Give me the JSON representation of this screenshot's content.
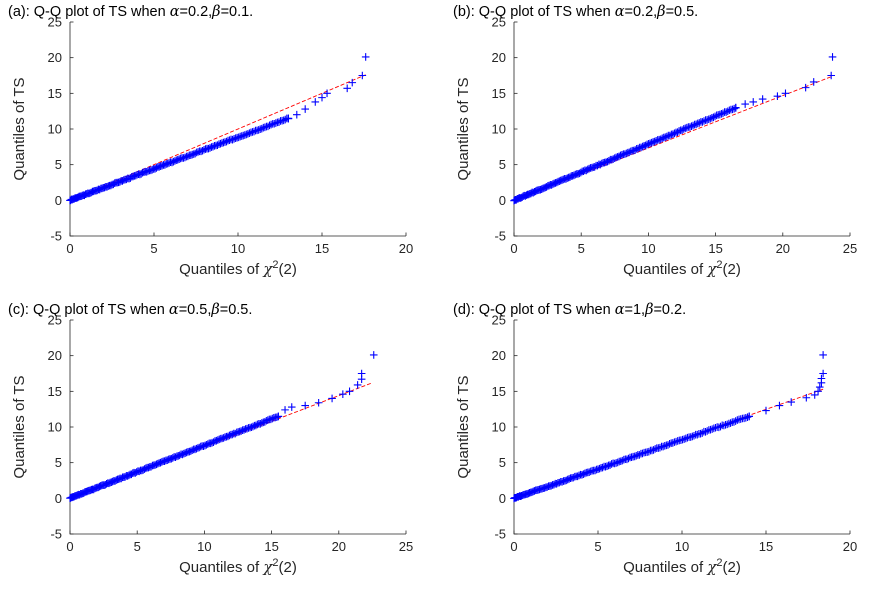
{
  "figure": {
    "colors": {
      "marker": "#0000ff",
      "reference_line": "#ff0000",
      "axis": "#262626"
    }
  },
  "chart_data": [
    {
      "id": "a",
      "type": "scatter",
      "title_prefix": "(a): Q-Q plot of TS when ",
      "alpha_symbol": "α",
      "alpha_value": "=0.2,",
      "beta_symbol": "β",
      "beta_value": "=0.1.",
      "xlabel_text": "Quantiles of ",
      "xlabel_symbol": "χ",
      "xlabel_sup": "2",
      "xlabel_tail": "(2)",
      "ylabel": "Quantiles of TS",
      "xlim": [
        0,
        20
      ],
      "ylim": [
        -5,
        25
      ],
      "xticks": [
        0,
        5,
        10,
        15,
        20
      ],
      "yticks": [
        -5,
        0,
        5,
        10,
        15,
        20,
        25
      ],
      "reference_line": {
        "x": [
          0,
          17.6
        ],
        "y": [
          0,
          17.6
        ]
      },
      "tail_points": [
        [
          13.0,
          11.5
        ],
        [
          13.5,
          12.0
        ],
        [
          14.0,
          12.8
        ],
        [
          14.6,
          13.8
        ],
        [
          15.0,
          14.4
        ],
        [
          15.3,
          15.0
        ],
        [
          16.5,
          15.7
        ],
        [
          16.8,
          16.5
        ],
        [
          17.4,
          17.5
        ],
        [
          17.6,
          20.1
        ]
      ]
    },
    {
      "id": "b",
      "type": "scatter",
      "title_prefix": "(b): Q-Q plot of TS when ",
      "alpha_symbol": "α",
      "alpha_value": "=0.2,",
      "beta_symbol": "β",
      "beta_value": "=0.5.",
      "xlabel_text": "Quantiles of ",
      "xlabel_symbol": "χ",
      "xlabel_sup": "2",
      "xlabel_tail": "(2)",
      "ylabel": "Quantiles of TS",
      "xlim": [
        0,
        25
      ],
      "ylim": [
        -5,
        25
      ],
      "xticks": [
        0,
        5,
        10,
        15,
        20,
        25
      ],
      "yticks": [
        -5,
        0,
        5,
        10,
        15,
        20,
        25
      ],
      "reference_line": {
        "x": [
          0,
          23.7
        ],
        "y": [
          0,
          17.4
        ]
      },
      "tail_points": [
        [
          16.5,
          13.0
        ],
        [
          17.2,
          13.5
        ],
        [
          17.8,
          13.8
        ],
        [
          18.5,
          14.2
        ],
        [
          19.6,
          14.6
        ],
        [
          20.2,
          15.0
        ],
        [
          21.7,
          15.8
        ],
        [
          22.3,
          16.6
        ],
        [
          23.6,
          17.5
        ],
        [
          23.7,
          20.1
        ]
      ]
    },
    {
      "id": "c",
      "type": "scatter",
      "title_prefix": "(c): Q-Q plot of TS when ",
      "alpha_symbol": "α",
      "alpha_value": "=0.5,",
      "beta_symbol": "β",
      "beta_value": "=0.5.",
      "xlabel_text": "Quantiles of ",
      "xlabel_symbol": "χ",
      "xlabel_sup": "2",
      "xlabel_tail": "(2)",
      "ylabel": "Quantiles of TS",
      "xlim": [
        0,
        25
      ],
      "ylim": [
        -5,
        25
      ],
      "xticks": [
        0,
        5,
        10,
        15,
        20,
        25
      ],
      "yticks": [
        -5,
        0,
        5,
        10,
        15,
        20,
        25
      ],
      "reference_line": {
        "x": [
          0,
          22.5
        ],
        "y": [
          0,
          16.2
        ]
      },
      "tail_points": [
        [
          15.5,
          11.5
        ],
        [
          16.0,
          12.4
        ],
        [
          16.5,
          12.8
        ],
        [
          17.5,
          13.0
        ],
        [
          18.5,
          13.4
        ],
        [
          19.5,
          14.0
        ],
        [
          20.3,
          14.6
        ],
        [
          20.8,
          15.0
        ],
        [
          21.4,
          15.9
        ],
        [
          21.7,
          16.7
        ],
        [
          21.7,
          17.5
        ],
        [
          22.6,
          20.1
        ]
      ]
    },
    {
      "id": "d",
      "type": "scatter",
      "title_prefix": "(d): Q-Q plot of TS when ",
      "alpha_symbol": "α",
      "alpha_value": "=1,",
      "beta_symbol": "β",
      "beta_value": "=0.2.",
      "xlabel_text": "Quantiles of ",
      "xlabel_symbol": "χ",
      "xlabel_sup": "2",
      "xlabel_tail": "(2)",
      "ylabel": "Quantiles of TS",
      "xlim": [
        0,
        20
      ],
      "ylim": [
        -5,
        25
      ],
      "xticks": [
        0,
        5,
        10,
        15,
        20
      ],
      "yticks": [
        -5,
        0,
        5,
        10,
        15,
        20,
        25
      ],
      "reference_line": {
        "x": [
          0,
          18.4
        ],
        "y": [
          0,
          15.3
        ]
      },
      "tail_points": [
        [
          14.0,
          11.5
        ],
        [
          15.0,
          12.3
        ],
        [
          15.8,
          13.0
        ],
        [
          16.5,
          13.5
        ],
        [
          17.4,
          14.1
        ],
        [
          17.9,
          14.5
        ],
        [
          18.1,
          15.0
        ],
        [
          18.2,
          15.6
        ],
        [
          18.3,
          16.2
        ],
        [
          18.3,
          16.8
        ],
        [
          18.4,
          17.5
        ],
        [
          18.4,
          20.1
        ]
      ]
    }
  ]
}
